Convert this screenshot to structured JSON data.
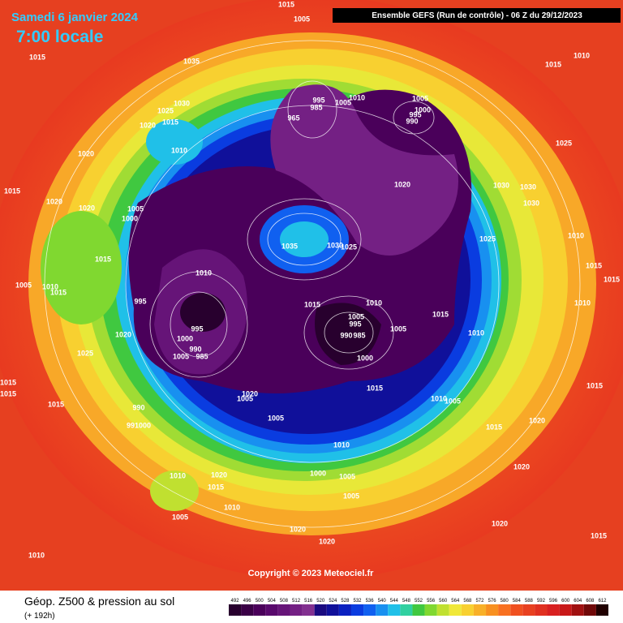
{
  "header": {
    "date": "Samedi 6 janvier 2024",
    "time": "7:00 locale",
    "run": "Ensemble GEFS  (Run de contrôle)  -  06 Z du 29/12/2023"
  },
  "footer": {
    "title": "Géop. Z500 & pression au sol",
    "lead": "(+ 192h)",
    "copyright": "Copyright © 2023 Meteociel.fr"
  },
  "scale": {
    "labels": [
      "492",
      "496",
      "500",
      "504",
      "508",
      "512",
      "516",
      "520",
      "524",
      "528",
      "532",
      "536",
      "540",
      "544",
      "548",
      "552",
      "556",
      "560",
      "564",
      "568",
      "572",
      "576",
      "580",
      "584",
      "588",
      "592",
      "596",
      "600",
      "604",
      "608",
      "612"
    ],
    "colors": [
      "#28002e",
      "#3a0046",
      "#4a005a",
      "#58086c",
      "#661478",
      "#742084",
      "#823090",
      "#1a0a80",
      "#10109a",
      "#0a20c0",
      "#0a3ce0",
      "#1060f0",
      "#1890f0",
      "#20c0e8",
      "#30d0a0",
      "#40c840",
      "#80d830",
      "#c0e030",
      "#f0e838",
      "#f8d030",
      "#f8b028",
      "#f89020",
      "#f87020",
      "#f05020",
      "#e84020",
      "#e03020",
      "#d82020",
      "#c81818",
      "#a01010",
      "#700808",
      "#200000"
    ]
  },
  "isobar_labels": [
    "1015",
    "1005",
    "1015",
    "1035",
    "1015",
    "1010",
    "1030",
    "1025",
    "1015",
    "1020",
    "1010",
    "1005",
    "1000",
    "995",
    "990",
    "1010",
    "1005",
    "995",
    "985",
    "965",
    "1025",
    "1020",
    "1015",
    "1020",
    "1020",
    "1005",
    "1000",
    "1020",
    "1030",
    "1030",
    "1030",
    "1035",
    "1030",
    "1025",
    "1025",
    "1010",
    "1015",
    "1015",
    "1015",
    "1010",
    "1005",
    "1010",
    "1015",
    "995",
    "1015",
    "1010",
    "1015",
    "1010",
    "1005",
    "995",
    "990",
    "985",
    "1005",
    "995",
    "1010",
    "1020",
    "1000",
    "990",
    "985",
    "1005",
    "1025",
    "1000",
    "1015",
    "1015",
    "1015",
    "1015",
    "1020",
    "1005",
    "1010",
    "1005",
    "990",
    "1015",
    "1005",
    "1015",
    "1020",
    "991000",
    "1010",
    "1000",
    "1005",
    "1020",
    "1010",
    "1020",
    "1015",
    "1005",
    "1010",
    "1005",
    "1020",
    "1020",
    "1015",
    "1020",
    "1010"
  ]
}
